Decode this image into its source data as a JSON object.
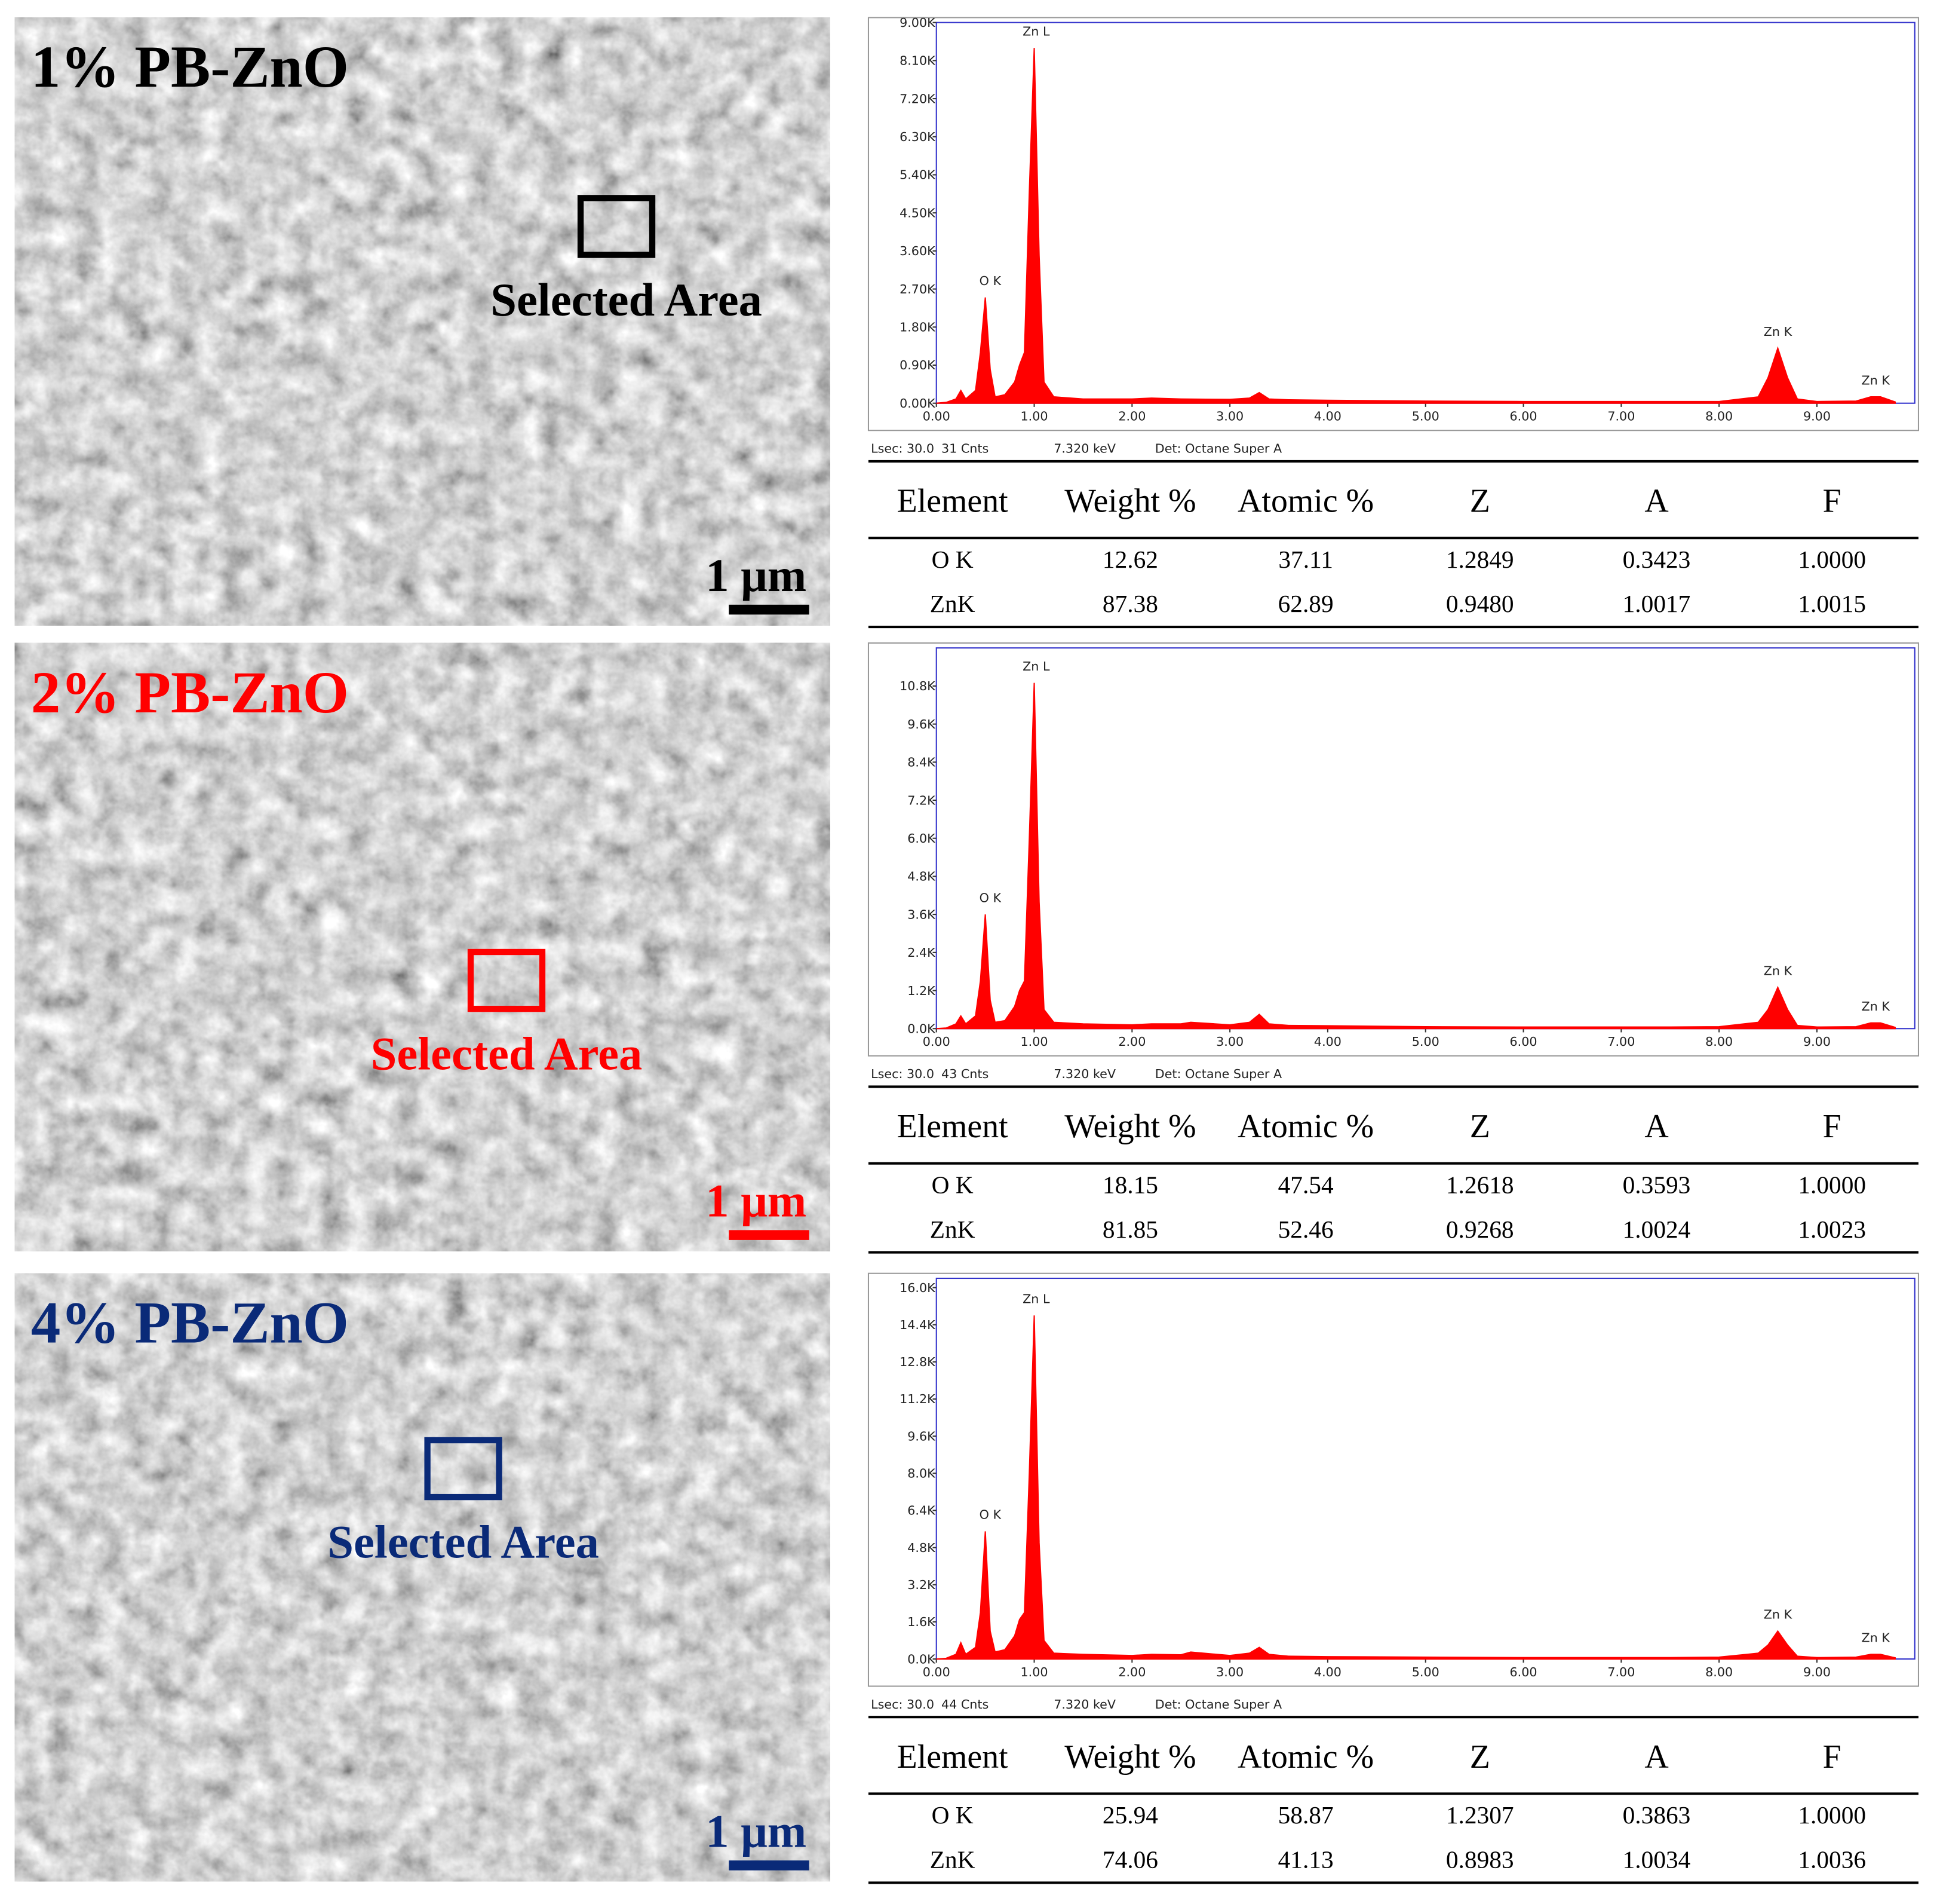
{
  "sem_images": [
    {
      "label": "1% PB-ZnO",
      "area_label": "Selected Area",
      "scale_bar": "1 μm",
      "color": "#000000"
    },
    {
      "label": "2% PB-ZnO",
      "area_label": "Selected Area",
      "scale_bar": "1 μm",
      "color": "#ff0000"
    },
    {
      "label": "4% PB-ZnO",
      "area_label": "Selected Area",
      "scale_bar": "1 μm",
      "color": "#0a2a78"
    }
  ],
  "chart_data": [
    {
      "type": "area",
      "color": "#ff0000",
      "x": [
        0,
        0.1,
        0.2,
        0.25,
        0.3,
        0.4,
        0.45,
        0.5,
        0.55,
        0.6,
        0.7,
        0.8,
        0.85,
        0.9,
        0.95,
        1.0,
        1.05,
        1.1,
        1.2,
        1.5,
        2.0,
        2.2,
        2.5,
        3.0,
        3.2,
        3.3,
        3.4,
        3.6,
        4.0,
        5.0,
        6.0,
        7.0,
        7.5,
        8.0,
        8.4,
        8.5,
        8.6,
        8.7,
        8.8,
        9.0,
        9.4,
        9.55,
        9.65,
        9.8
      ],
      "values": [
        0,
        20,
        100,
        300,
        100,
        300,
        1200,
        2500,
        800,
        150,
        200,
        500,
        900,
        1200,
        5000,
        8400,
        3500,
        500,
        150,
        100,
        100,
        120,
        100,
        90,
        120,
        250,
        100,
        80,
        70,
        50,
        40,
        40,
        40,
        40,
        150,
        600,
        1300,
        600,
        100,
        40,
        50,
        150,
        150,
        30
      ],
      "xlim": [
        0,
        10
      ],
      "ylim": [
        0,
        9000
      ],
      "xticks": [
        {
          "value": 0,
          "label": "0.00"
        },
        {
          "value": 1,
          "label": "1.00"
        },
        {
          "value": 2,
          "label": "2.00"
        },
        {
          "value": 3,
          "label": "3.00"
        },
        {
          "value": 4,
          "label": "4.00"
        },
        {
          "value": 5,
          "label": "5.00"
        },
        {
          "value": 6,
          "label": "6.00"
        },
        {
          "value": 7,
          "label": "7.00"
        },
        {
          "value": 8,
          "label": "8.00"
        },
        {
          "value": 9,
          "label": "9.00"
        }
      ],
      "yticks": [
        {
          "value": 0,
          "label": "0.00K"
        },
        {
          "value": 900,
          "label": "0.90K"
        },
        {
          "value": 1800,
          "label": "1.80K"
        },
        {
          "value": 2700,
          "label": "2.70K"
        },
        {
          "value": 3600,
          "label": "3.60K"
        },
        {
          "value": 4500,
          "label": "4.50K"
        },
        {
          "value": 5400,
          "label": "5.40K"
        },
        {
          "value": 6300,
          "label": "6.30K"
        },
        {
          "value": 7200,
          "label": "7.20K"
        },
        {
          "value": 8100,
          "label": "8.10K"
        },
        {
          "value": 9000,
          "label": "9.00K"
        }
      ],
      "annotations": [
        {
          "text": "O K",
          "x": 0.55,
          "y": 2500
        },
        {
          "text": "Zn L",
          "x": 1.02,
          "y": 8400
        },
        {
          "text": "Zn K",
          "x": 8.6,
          "y": 1300
        },
        {
          "text": "Zn K",
          "x": 9.6,
          "y": 150
        }
      ],
      "footer": [
        "Lsec: 30.0",
        "31 Cnts",
        "7.320 keV",
        "Det: Octane Super A"
      ]
    },
    {
      "type": "area",
      "color": "#ff0000",
      "x": [
        0,
        0.1,
        0.2,
        0.25,
        0.3,
        0.4,
        0.45,
        0.5,
        0.55,
        0.6,
        0.7,
        0.8,
        0.85,
        0.9,
        0.95,
        1.0,
        1.05,
        1.1,
        1.2,
        1.5,
        2.0,
        2.2,
        2.5,
        2.6,
        3.0,
        3.2,
        3.3,
        3.4,
        3.6,
        4.0,
        5.0,
        6.0,
        7.0,
        7.5,
        8.0,
        8.4,
        8.5,
        8.6,
        8.7,
        8.8,
        9.0,
        9.4,
        9.55,
        9.65,
        9.8
      ],
      "values": [
        0,
        20,
        150,
        400,
        150,
        400,
        1500,
        3600,
        900,
        200,
        250,
        700,
        1200,
        1500,
        6000,
        10900,
        4000,
        600,
        200,
        150,
        120,
        150,
        150,
        200,
        120,
        200,
        450,
        150,
        100,
        90,
        60,
        50,
        50,
        50,
        60,
        200,
        600,
        1300,
        600,
        100,
        50,
        60,
        180,
        180,
        40
      ],
      "xlim": [
        0,
        10
      ],
      "ylim": [
        0,
        12000
      ],
      "xticks": [
        {
          "value": 0,
          "label": "0.00"
        },
        {
          "value": 1,
          "label": "1.00"
        },
        {
          "value": 2,
          "label": "2.00"
        },
        {
          "value": 3,
          "label": "3.00"
        },
        {
          "value": 4,
          "label": "4.00"
        },
        {
          "value": 5,
          "label": "5.00"
        },
        {
          "value": 6,
          "label": "6.00"
        },
        {
          "value": 7,
          "label": "7.00"
        },
        {
          "value": 8,
          "label": "8.00"
        },
        {
          "value": 9,
          "label": "9.00"
        }
      ],
      "yticks": [
        {
          "value": 0,
          "label": "0.0K"
        },
        {
          "value": 1200,
          "label": "1.2K"
        },
        {
          "value": 2400,
          "label": "2.4K"
        },
        {
          "value": 3600,
          "label": "3.6K"
        },
        {
          "value": 4800,
          "label": "4.8K"
        },
        {
          "value": 6000,
          "label": "6.0K"
        },
        {
          "value": 7200,
          "label": "7.2K"
        },
        {
          "value": 8400,
          "label": "8.4K"
        },
        {
          "value": 9600,
          "label": "9.6K"
        },
        {
          "value": 10800,
          "label": "10.8K"
        }
      ],
      "annotations": [
        {
          "text": "O K",
          "x": 0.55,
          "y": 3600
        },
        {
          "text": "Zn L",
          "x": 1.02,
          "y": 10900
        },
        {
          "text": "Zn K",
          "x": 8.6,
          "y": 1300
        },
        {
          "text": "Zn K",
          "x": 9.6,
          "y": 180
        }
      ],
      "footer": [
        "Lsec: 30.0",
        "43 Cnts",
        "7.320 keV",
        "Det: Octane Super A"
      ]
    },
    {
      "type": "area",
      "color": "#ff0000",
      "x": [
        0,
        0.1,
        0.2,
        0.25,
        0.3,
        0.4,
        0.45,
        0.5,
        0.55,
        0.6,
        0.7,
        0.8,
        0.85,
        0.9,
        0.95,
        1.0,
        1.05,
        1.1,
        1.2,
        1.5,
        2.0,
        2.2,
        2.5,
        2.6,
        3.0,
        3.2,
        3.3,
        3.4,
        3.6,
        4.0,
        5.0,
        6.0,
        7.0,
        7.5,
        8.0,
        8.4,
        8.5,
        8.6,
        8.7,
        8.8,
        9.0,
        9.4,
        9.55,
        9.65,
        9.8
      ],
      "values": [
        0,
        30,
        200,
        700,
        200,
        500,
        2000,
        5500,
        1200,
        300,
        400,
        1000,
        1700,
        2000,
        8000,
        14800,
        5000,
        800,
        250,
        200,
        150,
        200,
        180,
        300,
        150,
        250,
        500,
        200,
        120,
        100,
        80,
        60,
        60,
        60,
        80,
        250,
        600,
        1200,
        600,
        120,
        60,
        80,
        200,
        200,
        50
      ],
      "xlim": [
        0,
        10
      ],
      "ylim": [
        0,
        16400
      ],
      "xticks": [
        {
          "value": 0,
          "label": "0.00"
        },
        {
          "value": 1,
          "label": "1.00"
        },
        {
          "value": 2,
          "label": "2.00"
        },
        {
          "value": 3,
          "label": "3.00"
        },
        {
          "value": 4,
          "label": "4.00"
        },
        {
          "value": 5,
          "label": "5.00"
        },
        {
          "value": 6,
          "label": "6.00"
        },
        {
          "value": 7,
          "label": "7.00"
        },
        {
          "value": 8,
          "label": "8.00"
        },
        {
          "value": 9,
          "label": "9.00"
        }
      ],
      "yticks": [
        {
          "value": 0,
          "label": "0.0K"
        },
        {
          "value": 1600,
          "label": "1.6K"
        },
        {
          "value": 3200,
          "label": "3.2K"
        },
        {
          "value": 4800,
          "label": "4.8K"
        },
        {
          "value": 6400,
          "label": "6.4K"
        },
        {
          "value": 8000,
          "label": "8.0K"
        },
        {
          "value": 9600,
          "label": "9.6K"
        },
        {
          "value": 11200,
          "label": "11.2K"
        },
        {
          "value": 12800,
          "label": "12.8K"
        },
        {
          "value": 14400,
          "label": "14.4K"
        },
        {
          "value": 16000,
          "label": "16.0K"
        }
      ],
      "annotations": [
        {
          "text": "O K",
          "x": 0.55,
          "y": 5500
        },
        {
          "text": "Zn L",
          "x": 1.02,
          "y": 14800
        },
        {
          "text": "Zn K",
          "x": 8.6,
          "y": 1200
        },
        {
          "text": "Zn K",
          "x": 9.6,
          "y": 200
        }
      ],
      "footer": [
        "Lsec: 30.0",
        "44 Cnts",
        "7.320 keV",
        "Det: Octane Super A"
      ]
    }
  ],
  "tables": [
    {
      "header": [
        "Element",
        "Weight %",
        "Atomic %",
        "Z",
        "A",
        "F"
      ],
      "rows": [
        [
          "O K",
          "12.62",
          "37.11",
          "1.2849",
          "0.3423",
          "1.0000"
        ],
        [
          "ZnK",
          "87.38",
          "62.89",
          "0.9480",
          "1.0017",
          "1.0015"
        ]
      ]
    },
    {
      "header": [
        "Element",
        "Weight %",
        "Atomic %",
        "Z",
        "A",
        "F"
      ],
      "rows": [
        [
          "O K",
          "18.15",
          "47.54",
          "1.2618",
          "0.3593",
          "1.0000"
        ],
        [
          "ZnK",
          "81.85",
          "52.46",
          "0.9268",
          "1.0024",
          "1.0023"
        ]
      ]
    },
    {
      "header": [
        "Element",
        "Weight %",
        "Atomic %",
        "Z",
        "A",
        "F"
      ],
      "rows": [
        [
          "O K",
          "25.94",
          "58.87",
          "1.2307",
          "0.3863",
          "1.0000"
        ],
        [
          "ZnK",
          "74.06",
          "41.13",
          "0.8983",
          "1.0034",
          "1.0036"
        ]
      ]
    }
  ]
}
